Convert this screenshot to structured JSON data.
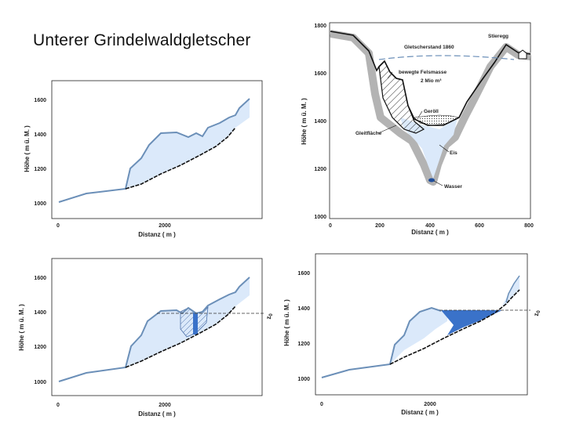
{
  "title": "Unterer Grindelwaldgletscher",
  "colors": {
    "ice_fill": "#dbe9fa",
    "ice_outline": "#6b8fb8",
    "lake_fill": "#3a72c9",
    "rock_outline": "#111111",
    "valley_gray": "#b3b3b3"
  },
  "profile_axes": {
    "y_label": "Höhe ( m ü. M. )",
    "x_label": "Distanz ( m )",
    "y_ticks": [
      "1000",
      "1200",
      "1400",
      "1600"
    ],
    "x_ticks": [
      "0",
      "2000"
    ]
  },
  "profile_top_left": {
    "name": "longitudinal-profile-1"
  },
  "profile_bottom_left": {
    "z0_label": "z",
    "z0_sub": "0"
  },
  "profile_bottom_right": {
    "z0_label": "z",
    "z0_sub": "0"
  },
  "cross_section": {
    "y_label": "Höhe ( m ü. M. )",
    "x_label": "Distanz ( m )",
    "y_ticks": [
      "1000",
      "1200",
      "1400",
      "1600",
      "1800"
    ],
    "x_ticks": [
      "0",
      "200",
      "400",
      "600",
      "800"
    ],
    "labels": {
      "stieregg": "Stieregg",
      "gletscherstand": "Gletscherstand  1860",
      "felsmasse": "bewegte Felsmasse",
      "volume": "2 Mio  m³",
      "geroell": "Geröll",
      "gleitflaeche": "Gleitfläche",
      "eis": "Eis",
      "wasser": "Wasser"
    }
  }
}
